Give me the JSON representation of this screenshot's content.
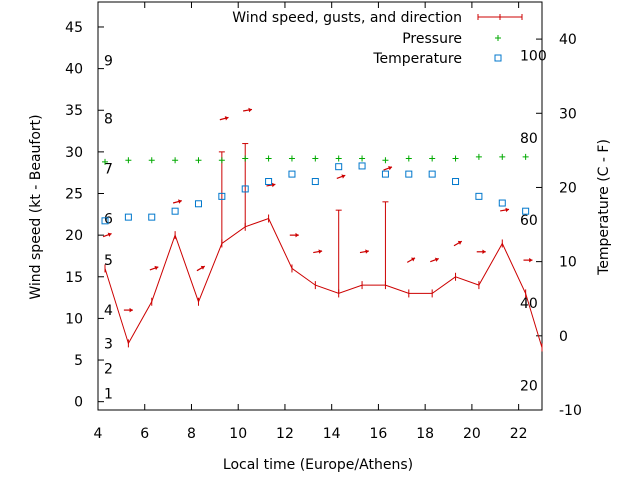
{
  "chart_data": {
    "type": "line",
    "title": "",
    "xlabel": "Local time (Europe/Athens)",
    "ylabel": "Wind speed (kt - Beaufort)",
    "y2label": "Temperature (C - F)",
    "xlim": [
      4,
      23
    ],
    "ylim": [
      -1,
      48
    ],
    "y2lim": [
      -10,
      45
    ],
    "grid": false,
    "legend_position": "top-right",
    "x_ticks": [
      4,
      6,
      8,
      10,
      12,
      14,
      16,
      18,
      20,
      22
    ],
    "y_ticks": [
      0,
      5,
      10,
      15,
      20,
      25,
      30,
      35,
      40,
      45
    ],
    "y2_ticks": [
      -10,
      0,
      10,
      20,
      30,
      40
    ],
    "beaufort_labels": [
      {
        "label": "1",
        "y": 1
      },
      {
        "label": "2",
        "y": 4
      },
      {
        "label": "3",
        "y": 7
      },
      {
        "label": "4",
        "y": 11
      },
      {
        "label": "5",
        "y": 17
      },
      {
        "label": "6",
        "y": 22
      },
      {
        "label": "7",
        "y": 28
      },
      {
        "label": "8",
        "y": 34
      },
      {
        "label": "9",
        "y": 41
      }
    ],
    "fahrenheit_labels": [
      {
        "label": "20",
        "t": -6.7
      },
      {
        "label": "40",
        "t": 4.4
      },
      {
        "label": "60",
        "t": 15.6
      },
      {
        "label": "80",
        "t": 26.7
      },
      {
        "label": "100",
        "t": 37.8
      }
    ],
    "colors": {
      "wind": "#cc0000",
      "pressure": "#00aa00",
      "temperature": "#0077cc",
      "axis": "#000000"
    },
    "series": [
      {
        "name": "Wind speed, gusts, and direction",
        "kind": "wind",
        "x": [
          4.3,
          5.3,
          6.3,
          7.3,
          8.3,
          9.3,
          10.3,
          11.3,
          12.3,
          13.3,
          14.3,
          15.3,
          16.3,
          17.3,
          18.3,
          19.3,
          20.3,
          21.3,
          22.3,
          23.0
        ],
        "speed": [
          16,
          7,
          12,
          20,
          12,
          19,
          21,
          22,
          16,
          14,
          13,
          14,
          14,
          13,
          13,
          15,
          14,
          19,
          13,
          6.5
        ],
        "gust": [
          null,
          null,
          null,
          null,
          null,
          30,
          31,
          null,
          null,
          null,
          23,
          null,
          24,
          null,
          null,
          null,
          null,
          null,
          null,
          null
        ],
        "arrow_x": [
          4.4,
          5.3,
          6.4,
          7.4,
          8.4,
          9.4,
          10.4,
          11.4,
          12.4,
          13.4,
          14.4,
          15.4,
          16.4,
          17.4,
          18.4,
          19.4,
          20.4,
          21.4,
          22.4
        ],
        "arrow_y": [
          20,
          11,
          16,
          24,
          16,
          34,
          35,
          26,
          20,
          18,
          27,
          18,
          28,
          17,
          17,
          19,
          18,
          23,
          17
        ],
        "direction_deg": [
          20,
          0,
          20,
          15,
          30,
          15,
          10,
          10,
          0,
          10,
          20,
          10,
          20,
          30,
          20,
          30,
          0,
          10,
          0
        ]
      },
      {
        "name": "Pressure",
        "kind": "pressure",
        "x": [
          4.3,
          5.3,
          6.3,
          7.3,
          8.3,
          9.3,
          10.3,
          11.3,
          12.3,
          13.3,
          14.3,
          15.3,
          16.3,
          17.3,
          18.3,
          19.3,
          20.3,
          21.3,
          22.3
        ],
        "values": [
          28.8,
          29.0,
          29.0,
          29.0,
          29.0,
          29.0,
          29.2,
          29.2,
          29.2,
          29.2,
          29.2,
          29.2,
          29.0,
          29.2,
          29.2,
          29.2,
          29.4,
          29.4,
          29.4
        ]
      },
      {
        "name": "Temperature",
        "kind": "temperature",
        "x": [
          4.3,
          5.3,
          6.3,
          7.3,
          8.3,
          9.3,
          10.3,
          11.3,
          12.3,
          13.3,
          14.3,
          15.3,
          16.3,
          17.3,
          18.3,
          19.3,
          20.3,
          21.3,
          22.3
        ],
        "values": [
          15.5,
          16.0,
          16.0,
          16.8,
          17.8,
          18.8,
          19.8,
          20.8,
          21.8,
          20.8,
          22.8,
          22.9,
          21.8,
          21.8,
          21.8,
          20.8,
          18.8,
          17.9,
          16.8
        ]
      }
    ]
  }
}
